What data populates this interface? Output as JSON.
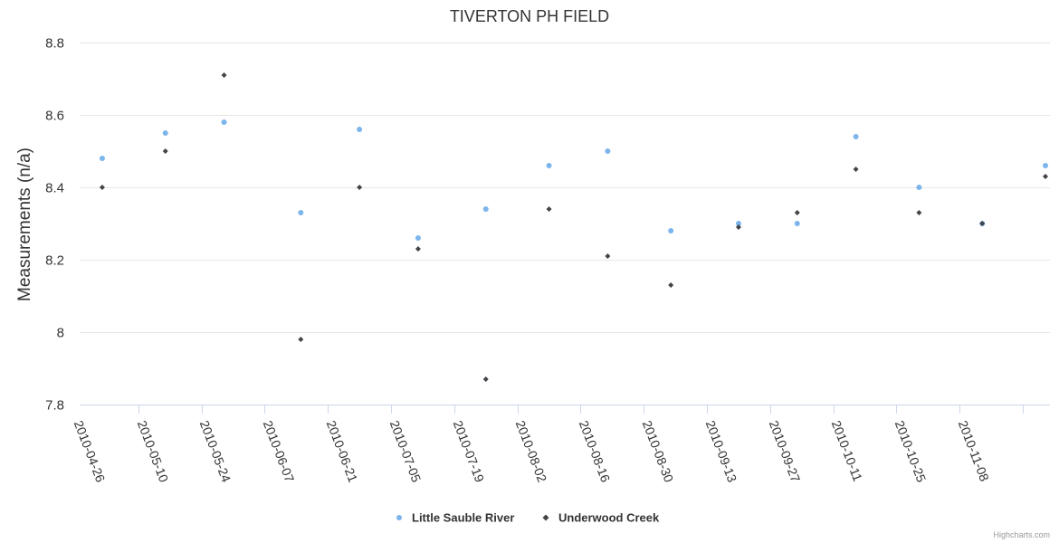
{
  "chart_data": {
    "type": "scatter",
    "title": "TIVERTON PH FIELD",
    "ylabel": "Measurements (n/a)",
    "xlabel": "",
    "ylim": [
      7.8,
      8.8
    ],
    "yticks": [
      7.8,
      8,
      8.2,
      8.4,
      8.6,
      8.8
    ],
    "ytick_labels": [
      "7.8",
      "8",
      "8.2",
      "8.4",
      "8.6",
      "8.8"
    ],
    "x_range": [
      "2010-04-13",
      "2010-11-14"
    ],
    "xticks": [
      "2010-04-26",
      "2010-05-10",
      "2010-05-24",
      "2010-06-07",
      "2010-06-21",
      "2010-07-05",
      "2010-07-19",
      "2010-08-02",
      "2010-08-16",
      "2010-08-30",
      "2010-09-13",
      "2010-09-27",
      "2010-10-11",
      "2010-10-25",
      "2010-11-08"
    ],
    "grid": true,
    "legend_position": "bottom-center",
    "series": [
      {
        "name": "Little Sauble River",
        "marker": "circle",
        "color": "#7cb5ec",
        "points": [
          {
            "x": "2010-04-18",
            "y": 8.48
          },
          {
            "x": "2010-05-02",
            "y": 8.55
          },
          {
            "x": "2010-05-15",
            "y": 8.58
          },
          {
            "x": "2010-06-01",
            "y": 8.33
          },
          {
            "x": "2010-06-14",
            "y": 8.56
          },
          {
            "x": "2010-06-27",
            "y": 8.26
          },
          {
            "x": "2010-07-12",
            "y": 8.34
          },
          {
            "x": "2010-07-26",
            "y": 8.46
          },
          {
            "x": "2010-08-08",
            "y": 8.5
          },
          {
            "x": "2010-08-22",
            "y": 8.28
          },
          {
            "x": "2010-09-06",
            "y": 8.3
          },
          {
            "x": "2010-09-19",
            "y": 8.3
          },
          {
            "x": "2010-10-02",
            "y": 8.54
          },
          {
            "x": "2010-10-16",
            "y": 8.4
          },
          {
            "x": "2010-10-30",
            "y": 8.3
          },
          {
            "x": "2010-11-13",
            "y": 8.46
          }
        ]
      },
      {
        "name": "Underwood Creek",
        "marker": "diamond",
        "color": "#434348",
        "points": [
          {
            "x": "2010-04-18",
            "y": 8.4
          },
          {
            "x": "2010-05-02",
            "y": 8.5
          },
          {
            "x": "2010-05-15",
            "y": 8.71
          },
          {
            "x": "2010-06-01",
            "y": 7.98
          },
          {
            "x": "2010-06-14",
            "y": 8.4
          },
          {
            "x": "2010-06-27",
            "y": 8.23
          },
          {
            "x": "2010-07-12",
            "y": 7.87
          },
          {
            "x": "2010-07-26",
            "y": 8.34
          },
          {
            "x": "2010-08-08",
            "y": 8.21
          },
          {
            "x": "2010-08-22",
            "y": 8.13
          },
          {
            "x": "2010-09-06",
            "y": 8.29
          },
          {
            "x": "2010-09-19",
            "y": 8.33
          },
          {
            "x": "2010-10-02",
            "y": 8.45
          },
          {
            "x": "2010-10-16",
            "y": 8.33
          },
          {
            "x": "2010-10-30",
            "y": 8.3
          },
          {
            "x": "2010-11-13",
            "y": 8.43
          }
        ]
      }
    ]
  },
  "credits": "Highcharts.com"
}
